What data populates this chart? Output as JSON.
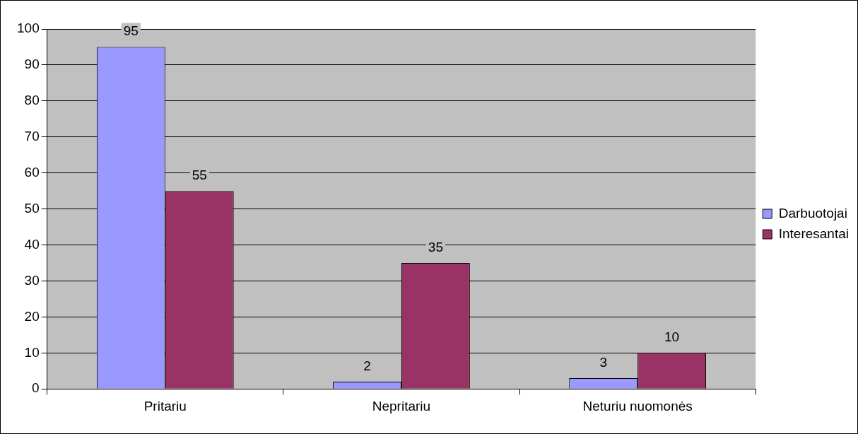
{
  "chart_data": {
    "type": "bar",
    "categories": [
      "Pritariu",
      "Nepritariu",
      "Neturiu nuomonės"
    ],
    "series": [
      {
        "name": "Darbuotojai",
        "color": "#9999ff",
        "values": [
          95,
          2,
          3
        ]
      },
      {
        "name": "Interesantai",
        "color": "#993366",
        "values": [
          55,
          35,
          10
        ]
      }
    ],
    "ylim": [
      0,
      100
    ],
    "yticks": [
      0,
      10,
      20,
      30,
      40,
      50,
      60,
      70,
      80,
      90,
      100
    ],
    "grid": "y",
    "legend": "right",
    "data_labels": true
  }
}
